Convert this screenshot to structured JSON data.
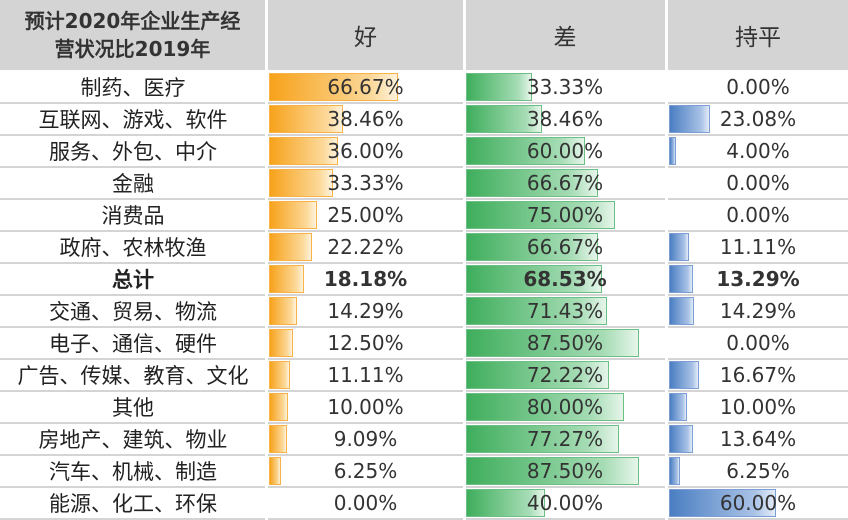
{
  "header": {
    "title_line1": "预计2020年企业生产经",
    "title_line2": "营状况比2019年",
    "col_good": "好",
    "col_bad": "差",
    "col_flat": "持平"
  },
  "colors": {
    "good": "#f7a21b",
    "bad": "#3fae5c",
    "flat": "#4a7ec2",
    "header_bg": "#d4d4d4"
  },
  "chart_data": {
    "type": "table",
    "columns": [
      "好",
      "差",
      "持平"
    ],
    "rows": [
      {
        "label": "制药、医疗",
        "good": 66.67,
        "bad": 33.33,
        "flat": 0.0,
        "good_text": "66.67%",
        "bad_text": "33.33%",
        "flat_text": "0.00%"
      },
      {
        "label": "互联网、游戏、软件",
        "good": 38.46,
        "bad": 38.46,
        "flat": 23.08,
        "good_text": "38.46%",
        "bad_text": "38.46%",
        "flat_text": "23.08%"
      },
      {
        "label": "服务、外包、中介",
        "good": 36.0,
        "bad": 60.0,
        "flat": 4.0,
        "good_text": "36.00%",
        "bad_text": "60.00%",
        "flat_text": "4.00%"
      },
      {
        "label": "金融",
        "good": 33.33,
        "bad": 66.67,
        "flat": 0.0,
        "good_text": "33.33%",
        "bad_text": "66.67%",
        "flat_text": "0.00%"
      },
      {
        "label": "消费品",
        "good": 25.0,
        "bad": 75.0,
        "flat": 0.0,
        "good_text": "25.00%",
        "bad_text": "75.00%",
        "flat_text": "0.00%"
      },
      {
        "label": "政府、农林牧渔",
        "good": 22.22,
        "bad": 66.67,
        "flat": 11.11,
        "good_text": "22.22%",
        "bad_text": "66.67%",
        "flat_text": "11.11%"
      },
      {
        "label": "总计",
        "good": 18.18,
        "bad": 68.53,
        "flat": 13.29,
        "good_text": "18.18%",
        "bad_text": "68.53%",
        "flat_text": "13.29%",
        "bold": true
      },
      {
        "label": "交通、贸易、物流",
        "good": 14.29,
        "bad": 71.43,
        "flat": 14.29,
        "good_text": "14.29%",
        "bad_text": "71.43%",
        "flat_text": "14.29%"
      },
      {
        "label": "电子、通信、硬件",
        "good": 12.5,
        "bad": 87.5,
        "flat": 0.0,
        "good_text": "12.50%",
        "bad_text": "87.50%",
        "flat_text": "0.00%"
      },
      {
        "label": "广告、传媒、教育、文化",
        "good": 11.11,
        "bad": 72.22,
        "flat": 16.67,
        "good_text": "11.11%",
        "bad_text": "72.22%",
        "flat_text": "16.67%"
      },
      {
        "label": "其他",
        "good": 10.0,
        "bad": 80.0,
        "flat": 10.0,
        "good_text": "10.00%",
        "bad_text": "80.00%",
        "flat_text": "10.00%"
      },
      {
        "label": "房地产、建筑、物业",
        "good": 9.09,
        "bad": 77.27,
        "flat": 13.64,
        "good_text": "9.09%",
        "bad_text": "77.27%",
        "flat_text": "13.64%"
      },
      {
        "label": "汽车、机械、制造",
        "good": 6.25,
        "bad": 87.5,
        "flat": 6.25,
        "good_text": "6.25%",
        "bad_text": "87.50%",
        "flat_text": "6.25%"
      },
      {
        "label": "能源、化工、环保",
        "good": 0.0,
        "bad": 40.0,
        "flat": 60.0,
        "good_text": "0.00%",
        "bad_text": "40.00%",
        "flat_text": "60.00%"
      }
    ]
  }
}
